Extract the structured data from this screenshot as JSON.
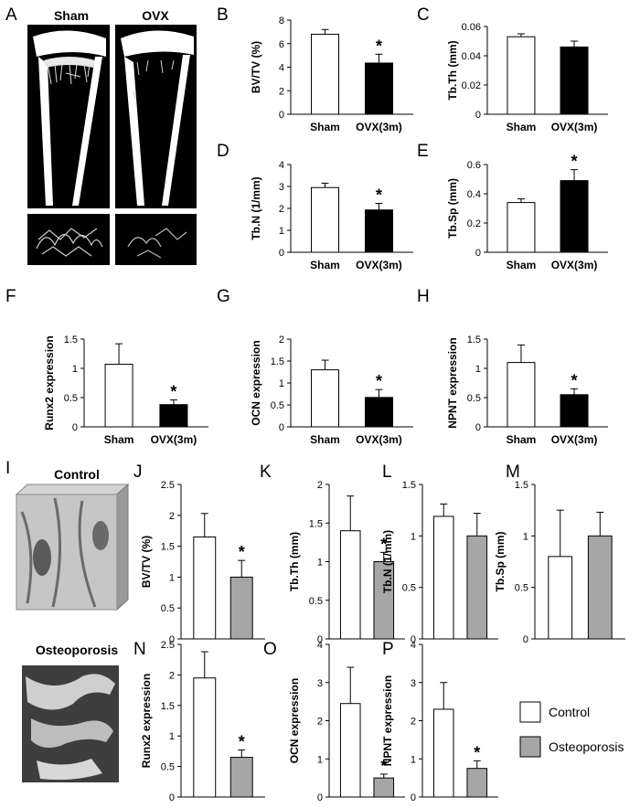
{
  "colors": {
    "control_bar": "#ffffff",
    "ovx_bar": "#000000",
    "osteoporosis_bar": "#a6a6a6",
    "axis": "#000000",
    "ct_background": "#000000",
    "bone": "#ffffff"
  },
  "panel_letters": {
    "A": "A",
    "I": "I"
  },
  "images": {
    "A_left_label": "Sham",
    "A_right_label": "OVX",
    "I_top_label": "Control",
    "I_bottom_label": "Osteoporosis"
  },
  "legend": {
    "control": "Control",
    "osteoporosis": "Osteoporosis"
  },
  "chart_data": [
    {
      "id": "B",
      "type": "bar",
      "ylabel": "BV/TV (%)",
      "categories": [
        "Sham",
        "OVX(3m)"
      ],
      "values": [
        6.8,
        4.35
      ],
      "errors": [
        0.4,
        0.75
      ],
      "ylim": [
        0,
        8
      ],
      "yticks": [
        0,
        2,
        4,
        6,
        8
      ],
      "star_on": [
        1
      ]
    },
    {
      "id": "C",
      "type": "bar",
      "ylabel": "Tb.Th (mm)",
      "categories": [
        "Sham",
        "OVX(3m)"
      ],
      "values": [
        0.053,
        0.046
      ],
      "errors": [
        0.002,
        0.004
      ],
      "ylim": [
        0,
        0.06
      ],
      "yticks": [
        0,
        0.02,
        0.04,
        0.06
      ],
      "star_on": []
    },
    {
      "id": "D",
      "type": "bar",
      "ylabel": "Tb.N (1/mm)",
      "categories": [
        "Sham",
        "OVX(3m)"
      ],
      "values": [
        2.95,
        1.93
      ],
      "errors": [
        0.2,
        0.3
      ],
      "ylim": [
        0,
        4
      ],
      "yticks": [
        0,
        1,
        2,
        3,
        4
      ],
      "star_on": [
        1
      ]
    },
    {
      "id": "E",
      "type": "bar",
      "ylabel": "Tb.Sp (mm)",
      "categories": [
        "Sham",
        "OVX(3m)"
      ],
      "values": [
        0.34,
        0.49
      ],
      "errors": [
        0.025,
        0.075
      ],
      "ylim": [
        0,
        0.6
      ],
      "yticks": [
        0,
        0.2,
        0.4,
        0.6
      ],
      "star_on": [
        1
      ]
    },
    {
      "id": "F",
      "type": "bar",
      "ylabel": "Runx2 expression",
      "categories": [
        "Sham",
        "OVX(3m)"
      ],
      "values": [
        1.07,
        0.38
      ],
      "errors": [
        0.35,
        0.08
      ],
      "ylim": [
        0,
        1.5
      ],
      "yticks": [
        0,
        0.5,
        1,
        1.5
      ],
      "star_on": [
        1
      ]
    },
    {
      "id": "G",
      "type": "bar",
      "ylabel": "OCN expression",
      "categories": [
        "Sham",
        "OVX(3m)"
      ],
      "values": [
        1.3,
        0.67
      ],
      "errors": [
        0.22,
        0.18
      ],
      "ylim": [
        0,
        2
      ],
      "yticks": [
        0,
        0.5,
        1,
        1.5,
        2
      ],
      "star_on": [
        1
      ]
    },
    {
      "id": "H",
      "type": "bar",
      "ylabel": "NPNT expression",
      "categories": [
        "Sham",
        "OVX(3m)"
      ],
      "values": [
        1.1,
        0.55
      ],
      "errors": [
        0.3,
        0.1
      ],
      "ylim": [
        0,
        1.5
      ],
      "yticks": [
        0,
        0.5,
        1,
        1.5
      ],
      "star_on": [
        1
      ]
    },
    {
      "id": "J",
      "type": "bar",
      "ylabel": "BV/TV (%)",
      "categories": [
        "",
        ""
      ],
      "values": [
        1.65,
        1.0
      ],
      "errors": [
        0.38,
        0.27
      ],
      "ylim": [
        0,
        2.5
      ],
      "yticks": [
        0,
        0.5,
        1,
        1.5,
        2,
        2.5
      ],
      "star_on": [
        1
      ]
    },
    {
      "id": "K",
      "type": "bar",
      "ylabel": "Tb.Th (mm)",
      "categories": [
        "",
        ""
      ],
      "values": [
        1.4,
        1.0
      ],
      "errors": [
        0.45,
        0.12
      ],
      "ylim": [
        0,
        2
      ],
      "yticks": [
        0,
        0.5,
        1,
        1.5,
        2
      ],
      "star_on": [
        1
      ]
    },
    {
      "id": "L",
      "type": "bar",
      "ylabel": "Tb.N (1/mm)",
      "categories": [
        "",
        ""
      ],
      "values": [
        1.19,
        1.0
      ],
      "errors": [
        0.12,
        0.22
      ],
      "ylim": [
        0,
        1.5
      ],
      "yticks": [
        0,
        0.5,
        1,
        1.5
      ],
      "star_on": []
    },
    {
      "id": "M",
      "type": "bar",
      "ylabel": "Tb.Sp (mm)",
      "categories": [
        "",
        ""
      ],
      "values": [
        0.8,
        1.0
      ],
      "errors": [
        0.45,
        0.23
      ],
      "ylim": [
        0,
        1.5
      ],
      "yticks": [
        0,
        0.5,
        1,
        1.5
      ],
      "star_on": []
    },
    {
      "id": "N",
      "type": "bar",
      "ylabel": "Runx2 expression",
      "categories": [
        "",
        ""
      ],
      "values": [
        1.95,
        0.65
      ],
      "errors": [
        0.43,
        0.12
      ],
      "ylim": [
        0,
        2.5
      ],
      "yticks": [
        0,
        0.5,
        1,
        1.5,
        2,
        2.5
      ],
      "star_on": [
        1
      ]
    },
    {
      "id": "O",
      "type": "bar",
      "ylabel": "OCN expression",
      "categories": [
        "",
        ""
      ],
      "values": [
        2.45,
        0.5
      ],
      "errors": [
        0.95,
        0.1
      ],
      "ylim": [
        0,
        4
      ],
      "yticks": [
        0,
        1,
        2,
        3,
        4
      ],
      "star_on": [
        1
      ]
    },
    {
      "id": "P",
      "type": "bar",
      "ylabel": "NPNT expression",
      "categories": [
        "",
        ""
      ],
      "values": [
        2.3,
        0.75
      ],
      "errors": [
        0.7,
        0.2
      ],
      "ylim": [
        0,
        4
      ],
      "yticks": [
        0,
        1,
        2,
        3,
        4
      ],
      "star_on": [
        1
      ]
    }
  ]
}
